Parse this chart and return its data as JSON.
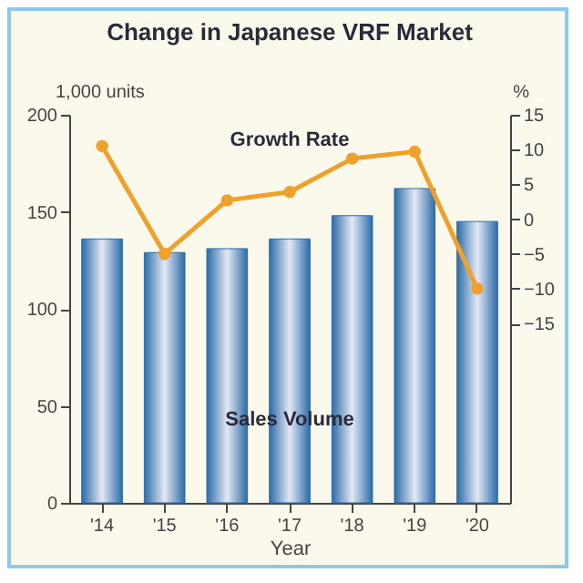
{
  "chart_data": {
    "type": "bar",
    "title": "Change in Japanese VRF Market",
    "xlabel": "Year",
    "ylabel": "1,000 units",
    "y2label": "%",
    "categories": [
      "'14",
      "'15",
      "'16",
      "'17",
      "'18",
      "'19",
      "'20"
    ],
    "series": [
      {
        "name": "Sales Volume",
        "color": "#2b6ca8",
        "values": [
          136,
          129,
          131,
          136,
          148,
          162,
          145
        ]
      },
      {
        "name": "Growth Rate",
        "type": "line",
        "axis": "y2",
        "color": "#f0a02c",
        "values": [
          10.5,
          -5,
          2.7,
          3.9,
          8.7,
          9.7,
          -10
        ]
      }
    ],
    "ylim": [
      0,
      200
    ],
    "yticks": [
      0,
      50,
      100,
      150,
      200
    ],
    "y2lim": [
      -40.8,
      15
    ],
    "y2ticks": [
      -15,
      -10,
      -5,
      0,
      5,
      10,
      15
    ],
    "marker": "circle"
  }
}
